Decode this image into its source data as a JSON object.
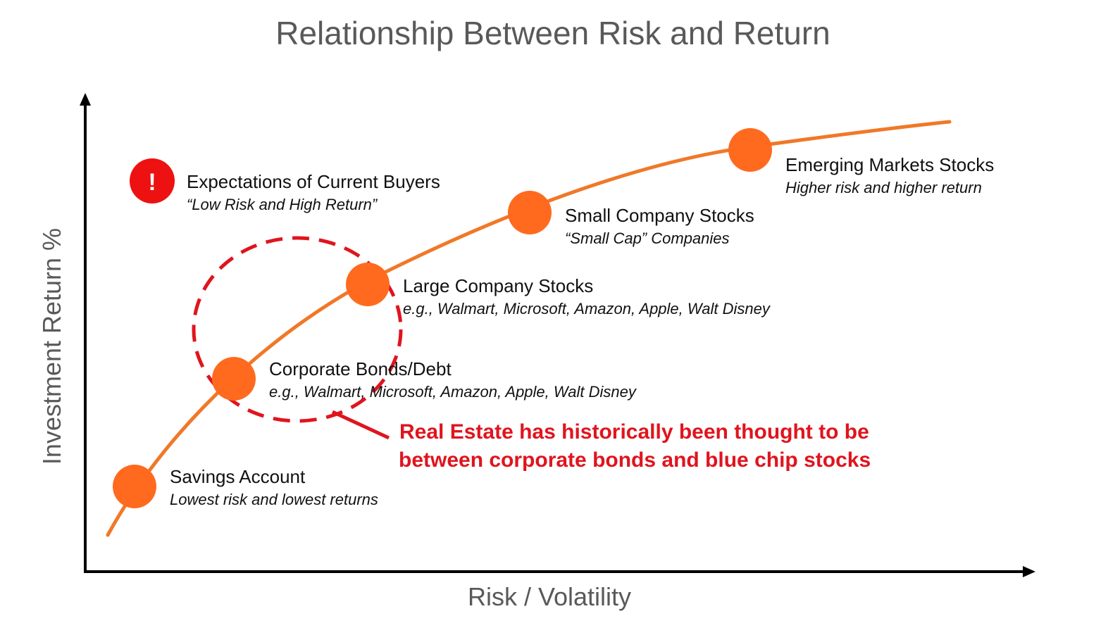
{
  "title": "Relationship Between Risk and Return",
  "axes": {
    "x_label": "Risk / Volatility",
    "y_label": "Investment Return %"
  },
  "colors": {
    "curve": "#f07828",
    "node": "#ff6a1f",
    "highlight": "#e0141e",
    "alert": "#ee1111",
    "axis": "#000000",
    "muted_text": "#595959"
  },
  "expectation": {
    "icon": "exclamation-alert-icon",
    "mark": "!",
    "label": "Expectations of Current Buyers",
    "subtitle": "“Low Risk and High Return”"
  },
  "nodes": [
    {
      "id": "savings-account",
      "label": "Savings Account",
      "subtitle": "Lowest risk and lowest returns"
    },
    {
      "id": "corporate-bonds",
      "label": "Corporate Bonds/Debt",
      "subtitle": "e.g., Walmart, Microsoft, Amazon, Apple, Walt Disney"
    },
    {
      "id": "large-company-stocks",
      "label": "Large Company Stocks",
      "subtitle": "e.g., Walmart, Microsoft, Amazon, Apple, Walt Disney"
    },
    {
      "id": "small-company-stocks",
      "label": "Small Company Stocks",
      "subtitle": "“Small Cap” Companies"
    },
    {
      "id": "emerging-markets-stocks",
      "label": "Emerging Markets Stocks",
      "subtitle": "Higher risk and higher return"
    }
  ],
  "callout": {
    "line1": "Real Estate has historically been thought to be",
    "line2": "between corporate bonds and blue chip stocks"
  }
}
